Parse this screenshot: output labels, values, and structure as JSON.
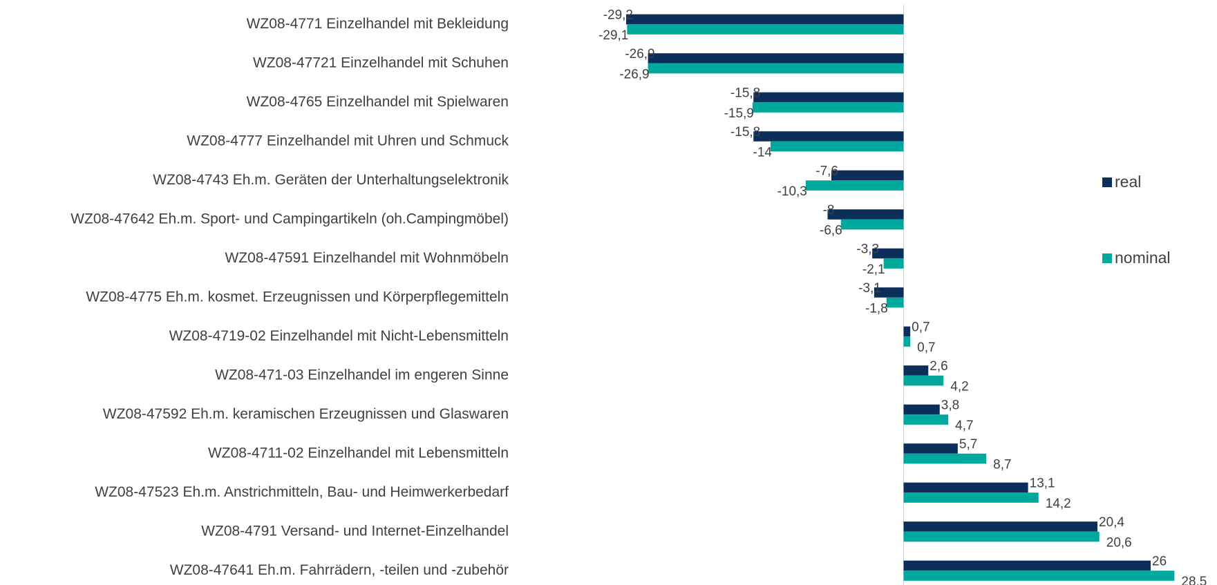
{
  "chart_data": {
    "type": "bar",
    "orientation": "horizontal",
    "categories": [
      "WZ08-4771 Einzelhandel mit Bekleidung",
      "WZ08-47721 Einzelhandel mit Schuhen",
      "WZ08-4765 Einzelhandel mit Spielwaren",
      "WZ08-4777 Einzelhandel mit Uhren und Schmuck",
      "WZ08-4743 Eh.m. Geräten der Unterhaltungselektronik",
      "WZ08-47642 Eh.m. Sport- und Campingartikeln (oh.Campingmöbel)",
      "WZ08-47591 Einzelhandel mit Wohnmöbeln",
      "WZ08-4775 Eh.m. kosmet. Erzeugnissen und Körperpflegemitteln",
      "WZ08-4719-02 Einzelhandel mit Nicht-Lebensmitteln",
      "WZ08-471-03 Einzelhandel im engeren Sinne",
      "WZ08-47592 Eh.m. keramischen Erzeugnissen und Glaswaren",
      "WZ08-4711-02 Einzelhandel mit Lebensmitteln",
      "WZ08-47523 Eh.m. Anstrichmitteln, Bau- und Heimwerkerbedarf",
      "WZ08-4791 Versand- und Internet-Einzelhandel",
      "WZ08-47641 Eh.m. Fahrrädern, -teilen und -zubehör"
    ],
    "series": [
      {
        "name": "real",
        "color": "#0b2f5a",
        "values": [
          -29.2,
          -26.9,
          -15.8,
          -15.8,
          -7.6,
          -8,
          -3.3,
          -3.1,
          0.7,
          2.6,
          3.8,
          5.7,
          13.1,
          20.4,
          26
        ],
        "value_labels": [
          "-29,2",
          "-26,9",
          "-15,8",
          "-15,8",
          "-7,6",
          "-8",
          "-3,3",
          "-3,1",
          "0,7",
          "2,6",
          "3,8",
          "5,7",
          "13,1",
          "20,4",
          "26"
        ]
      },
      {
        "name": "nominal",
        "color": "#00a99d",
        "values": [
          -29.1,
          -26.9,
          -15.9,
          -14,
          -10.3,
          -6.6,
          -2.1,
          -1.8,
          0.7,
          4.2,
          4.7,
          8.7,
          14.2,
          20.6,
          28.5
        ],
        "value_labels": [
          "-29,1",
          "-26,9",
          "-15,9",
          "-14",
          "-10,3",
          "-6,6",
          "-2,1",
          "-1,8",
          "0,7",
          "4,2",
          "4,7",
          "8,7",
          "14,2",
          "20,6",
          "28,5"
        ]
      }
    ],
    "xlim": [
      -30,
      30
    ],
    "legend": "right"
  }
}
